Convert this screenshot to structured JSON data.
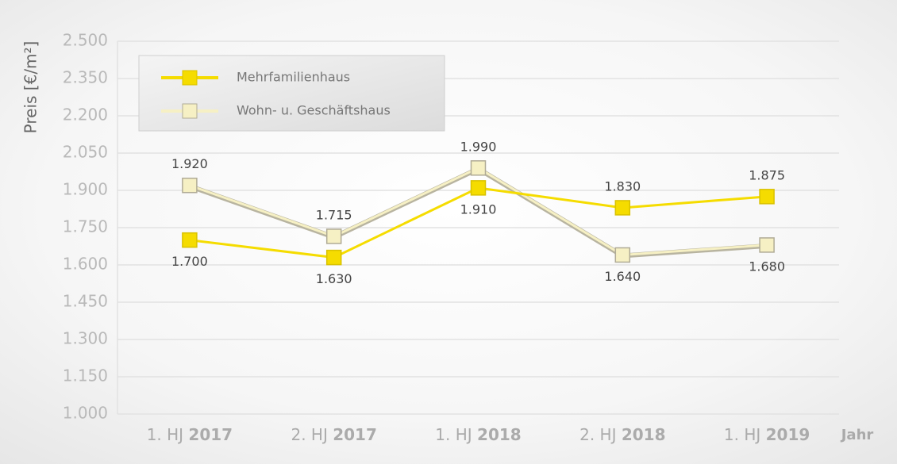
{
  "chart_data": {
    "type": "line",
    "y_axis_label": "Preis [€/m²]",
    "x_axis_label": "Jahr",
    "categories": [
      "1. HJ 2017",
      "2. HJ 2017",
      "1. HJ 2018",
      "2. HJ 2018",
      "1. HJ 2019"
    ],
    "series": [
      {
        "name": "Mehrfamilienhaus",
        "color": "#f5dc00",
        "values": [
          1700,
          1630,
          1910,
          1830,
          1875
        ],
        "value_labels": [
          "1.700",
          "1.630",
          "1.910",
          "1.830",
          "1.875"
        ]
      },
      {
        "name": "Wohn- u. Geschäftshaus",
        "color": "#f6f0c4",
        "values": [
          1920,
          1715,
          1990,
          1640,
          1680
        ],
        "value_labels": [
          "1.920",
          "1.715",
          "1.990",
          "1.640",
          "1.680"
        ]
      }
    ],
    "ylim": [
      1000,
      2500
    ],
    "yticks": [
      {
        "value": 1000,
        "label": "1.000"
      },
      {
        "value": 1150,
        "label": "1.150"
      },
      {
        "value": 1300,
        "label": "1.300"
      },
      {
        "value": 1450,
        "label": "1.450"
      },
      {
        "value": 1600,
        "label": "1.600"
      },
      {
        "value": 1750,
        "label": "1.750"
      },
      {
        "value": 1900,
        "label": "1.900"
      },
      {
        "value": 2050,
        "label": "2.050"
      },
      {
        "value": 2200,
        "label": "2.200"
      },
      {
        "value": 2350,
        "label": "2.350"
      },
      {
        "value": 2500,
        "label": "2.500"
      }
    ],
    "grid": true,
    "legend": "upper left"
  }
}
